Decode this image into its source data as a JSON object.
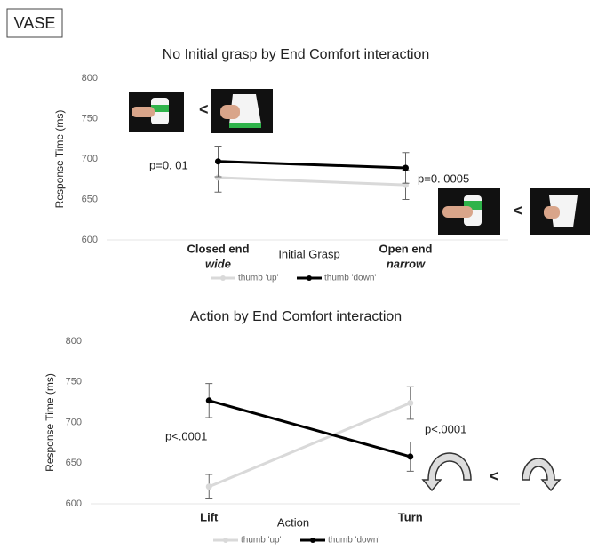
{
  "label": "VASE",
  "chart_data": [
    {
      "type": "line",
      "title": "No Initial grasp by End Comfort interaction",
      "y_label": "Response Time (ms)",
      "x_label": "Initial Grasp",
      "categories": [
        "Closed end",
        "Open end"
      ],
      "category_sublabels": [
        "wide",
        "narrow"
      ],
      "series": [
        {
          "name": "thumb 'up'",
          "color": "#d9d9d9",
          "values": [
            677,
            668
          ],
          "errors": [
            18,
            18
          ]
        },
        {
          "name": "thumb 'down'",
          "color": "#000000",
          "values": [
            697,
            689
          ],
          "errors": [
            19,
            19
          ]
        }
      ],
      "ylim": [
        600,
        800
      ],
      "yticks": [
        600,
        650,
        700,
        750,
        800
      ],
      "annotations": [
        "p=0. 01",
        "p=0. 0005",
        "<",
        "<"
      ]
    },
    {
      "type": "line",
      "title": "Action by End Comfort interaction",
      "y_label": "Response Time (ms)",
      "x_label": "Action",
      "categories": [
        "Lift",
        "Turn"
      ],
      "series": [
        {
          "name": "thumb 'up'",
          "color": "#d9d9d9",
          "values": [
            621,
            724
          ],
          "errors": [
            15,
            20
          ]
        },
        {
          "name": "thumb 'down'",
          "color": "#000000",
          "values": [
            727,
            658
          ],
          "errors": [
            21,
            18
          ]
        }
      ],
      "ylim": [
        600,
        800
      ],
      "yticks": [
        600,
        650,
        700,
        750,
        800
      ],
      "annotations": [
        "p<.0001",
        "p<.0001",
        "<"
      ]
    }
  ]
}
